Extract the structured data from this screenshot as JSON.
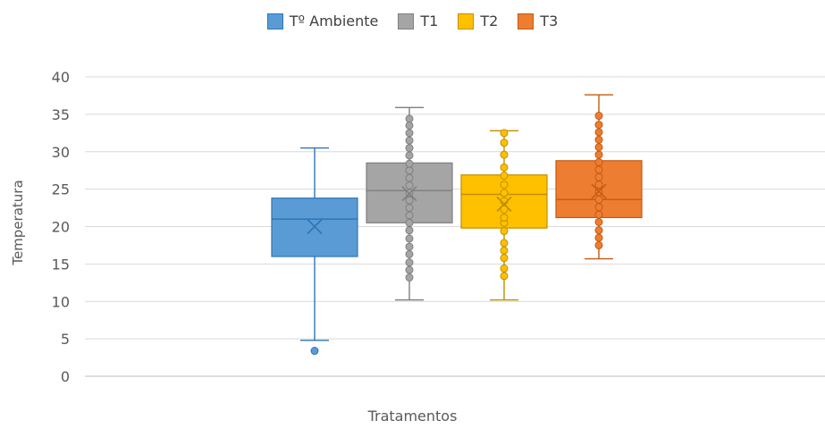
{
  "chart_data": {
    "type": "boxplot",
    "title": "",
    "xlabel": "Tratamentos",
    "ylabel": "Temperatura",
    "ylim": [
      0,
      40
    ],
    "yticks": [
      0,
      5,
      10,
      15,
      20,
      25,
      30,
      35,
      40
    ],
    "grid": true,
    "legend_position": "top",
    "series": [
      {
        "name": "Tº Ambiente",
        "color": "#5B9BD5",
        "edge": "#2E75B6",
        "min": 4.8,
        "q1": 16.0,
        "median": 21.0,
        "q3": 23.8,
        "max": 30.5,
        "mean": 20.0,
        "points": [
          3.4
        ]
      },
      {
        "name": "T1",
        "color": "#A5A5A5",
        "edge": "#7F7F7F",
        "min": 10.2,
        "q1": 20.5,
        "median": 24.8,
        "q3": 28.5,
        "max": 35.9,
        "mean": 24.4,
        "points": [
          13.2,
          14.2,
          15.2,
          16.3,
          17.3,
          18.4,
          19.5,
          20.5,
          21.5,
          22.5,
          23.5,
          24.5,
          25.5,
          26.5,
          27.5,
          28.4,
          29.5,
          30.5,
          31.5,
          32.5,
          33.5,
          34.4
        ]
      },
      {
        "name": "T2",
        "color": "#FFC000",
        "edge": "#BF9000",
        "min": 10.2,
        "q1": 19.8,
        "median": 24.3,
        "q3": 26.9,
        "max": 32.8,
        "mean": 23.0,
        "points": [
          13.4,
          14.4,
          15.8,
          16.8,
          17.8,
          19.4,
          20.5,
          21.2,
          22.3,
          23.4,
          24.5,
          25.6,
          26.8,
          27.9,
          29.6,
          31.2,
          32.5
        ]
      },
      {
        "name": "T3",
        "color": "#ED7D31",
        "edge": "#C55A11",
        "min": 15.7,
        "q1": 21.2,
        "median": 23.6,
        "q3": 28.8,
        "max": 37.6,
        "mean": 24.7,
        "points": [
          17.5,
          18.5,
          19.5,
          20.6,
          21.6,
          22.6,
          23.6,
          24.6,
          25.6,
          26.6,
          27.6,
          28.6,
          29.6,
          30.6,
          31.6,
          32.6,
          33.6,
          34.8
        ]
      }
    ]
  }
}
